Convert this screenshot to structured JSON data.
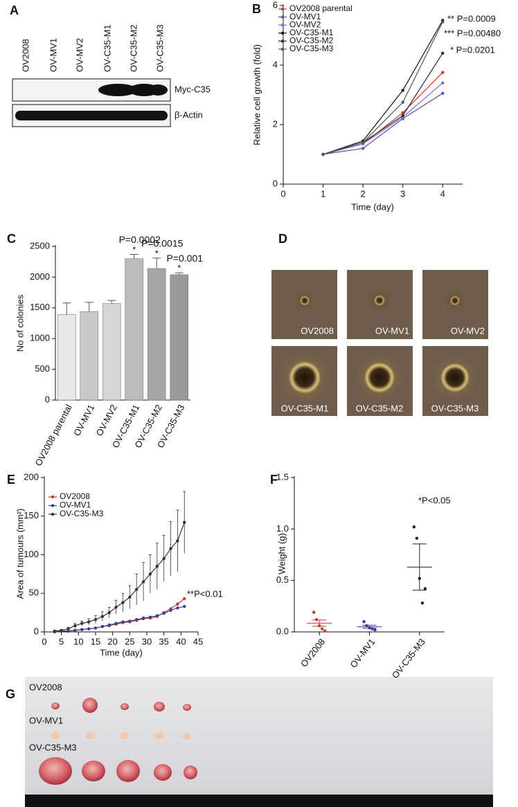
{
  "panels": {
    "letters": [
      "A",
      "B",
      "C",
      "D",
      "E",
      "F",
      "G"
    ],
    "A": {
      "lanes": [
        "OV2008",
        "OV-MV1",
        "OV-MV2",
        "OV-C35-M1",
        "OV-C35-M2",
        "OV-C35-M3"
      ],
      "bands": [
        "Myc-C35",
        "β-Actin"
      ]
    },
    "D": {
      "labels": [
        "OV2008",
        "OV-MV1",
        "OV-MV2",
        "OV-C35-M1",
        "OV-C35-M2",
        "OV-C35-M3"
      ]
    },
    "G": {
      "labels": [
        "OV2008",
        "OV-MV1",
        "OV-C35-M3"
      ]
    }
  },
  "chart_data": [
    {
      "type": "line",
      "x_label": "Time (day)",
      "y_label": "Relative cell growth (fold)",
      "x": [
        1,
        2,
        3,
        4
      ],
      "xlim": [
        0,
        4.5
      ],
      "xticks": [
        0,
        1,
        2,
        3,
        4
      ],
      "ylim": [
        0,
        6
      ],
      "yticks": [
        0,
        2,
        4,
        6
      ],
      "series": [
        {
          "name": "OV2008 parental",
          "color": "#c0392b",
          "values": [
            1,
            1.35,
            2.4,
            3.75
          ]
        },
        {
          "name": "OV-MV1",
          "color": "#5b4fb0",
          "values": [
            1,
            1.2,
            2.2,
            3.05
          ]
        },
        {
          "name": "OV-MV2",
          "color": "#6f73d6",
          "values": [
            1,
            1.35,
            2.25,
            3.4
          ]
        },
        {
          "name": "OV-C35-M1",
          "color": "#111111",
          "values": [
            1,
            1.45,
            3.15,
            5.5
          ]
        },
        {
          "name": "OV-C35-M2",
          "color": "#2a2a2a",
          "values": [
            1,
            1.4,
            2.3,
            4.4
          ]
        },
        {
          "name": "OV-C35-M3",
          "color": "#555555",
          "values": [
            1,
            1.4,
            2.75,
            5.45
          ]
        }
      ],
      "annotations": [
        "** P=0.0009",
        "*** P=0.00480",
        "* P=0.0201"
      ]
    },
    {
      "type": "bar",
      "y_label": "No of colonies",
      "categories": [
        "OV2008 parental",
        "OV-MV1",
        "OV-MV2",
        "OV-C35-M1",
        "OV-C35-M2",
        "OV-C35-M3"
      ],
      "values": [
        1390,
        1440,
        1570,
        2300,
        2140,
        2040
      ],
      "errors": [
        190,
        150,
        50,
        70,
        170,
        30
      ],
      "colors": [
        "#e8e8e8",
        "#c8c8c8",
        "#d6d6d6",
        "#bcbcbc",
        "#a6a6a6",
        "#999999"
      ],
      "ylim": [
        0,
        2500
      ],
      "yticks": [
        0,
        500,
        1000,
        1500,
        2000,
        2500
      ],
      "annotations": [
        {
          "text": "P=0.0002",
          "star": "*"
        },
        {
          "text": "P=0.0015",
          "star": "*"
        },
        {
          "text": "P=0.001",
          "star": "*"
        }
      ]
    },
    {
      "type": "line",
      "x_label": "Time (day)",
      "y_label": "Area of tumours (mm²)",
      "x": [
        3,
        5,
        7,
        9,
        11,
        13,
        15,
        17,
        19,
        21,
        23,
        25,
        27,
        29,
        31,
        33,
        35,
        37,
        39,
        41
      ],
      "xlim": [
        0,
        45
      ],
      "xticks": [
        0,
        5,
        10,
        15,
        20,
        25,
        30,
        35,
        40,
        45
      ],
      "ylim": [
        0,
        200
      ],
      "yticks": [
        0,
        50,
        100,
        150,
        200
      ],
      "series": [
        {
          "name": "OV2008",
          "color": "#c0392b",
          "values": [
            0,
            1,
            1,
            2,
            3,
            4,
            5,
            7,
            8,
            10,
            12,
            13,
            15,
            17,
            18,
            20,
            25,
            30,
            36,
            43
          ]
        },
        {
          "name": "OV-MV1",
          "color": "#3b3b9a",
          "values": [
            0,
            1,
            1,
            2,
            3,
            4,
            5,
            7,
            9,
            11,
            13,
            14,
            16,
            18,
            19,
            21,
            24,
            28,
            31,
            33
          ]
        },
        {
          "name": "OV-C35-M3",
          "color": "#333333",
          "values": [
            1,
            2,
            4,
            8,
            11,
            13,
            16,
            20,
            25,
            32,
            38,
            45,
            55,
            65,
            75,
            85,
            95,
            108,
            118,
            142
          ],
          "errors": [
            1,
            1,
            2,
            3,
            3,
            4,
            5,
            6,
            7,
            9,
            12,
            15,
            20,
            25,
            25,
            30,
            30,
            35,
            40,
            40
          ]
        }
      ],
      "annotations": [
        "**P<0.01"
      ]
    },
    {
      "type": "strip",
      "y_label": "Weight (g)",
      "categories": [
        "OV2008",
        "OV-MV1",
        "OV-C35-M3"
      ],
      "colors": [
        "#c0392b",
        "#3b3b9a",
        "#222222"
      ],
      "points": [
        [
          0.19,
          0.12,
          0.06,
          0.03,
          0.01
        ],
        [
          0.1,
          0.06,
          0.04,
          0.03,
          0.02
        ],
        [
          1.02,
          0.91,
          0.52,
          0.28,
          0.42
        ]
      ],
      "means": [
        0.085,
        0.05,
        0.63
      ],
      "errors": [
        0.03,
        0.015,
        0.225
      ],
      "ylim": [
        0,
        1.5
      ],
      "yticks": [
        {
          "value": 0,
          "label": "0.0"
        },
        {
          "value": 0.5,
          "label": "0.5"
        },
        {
          "value": 1,
          "label": "1.0"
        },
        {
          "value": 1.5,
          "label": "1.5"
        }
      ],
      "annotations": [
        "*P<0.05"
      ]
    }
  ]
}
